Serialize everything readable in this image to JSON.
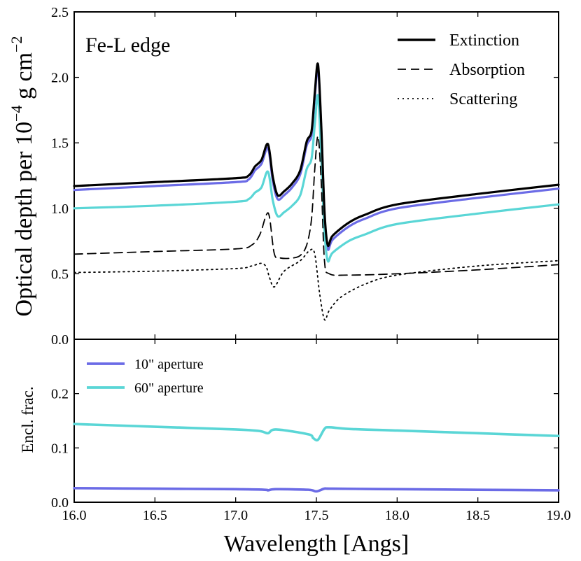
{
  "chart_data": [
    {
      "type": "line",
      "panel": "top",
      "annotation": "Fe-L edge",
      "xlabel": "Wavelength [Angs]",
      "ylabel": "Optical depth per 10^{-4} g cm^{-2}",
      "ylabel_parts": {
        "main": "Optical depth per 10",
        "exp": "−4",
        "tail": " g cm",
        "exp2": "−2"
      },
      "xlim": [
        16.0,
        19.0
      ],
      "ylim": [
        0.0,
        2.5
      ],
      "xticks": [
        "16.0",
        "16.5",
        "17.0",
        "17.5",
        "18.0",
        "18.5",
        "19.0"
      ],
      "yticks": [
        "0.0",
        "0.5",
        "1.0",
        "1.5",
        "2.0",
        "2.5"
      ],
      "legend_position": "upper-right",
      "series": [
        {
          "name": "10\" aperture",
          "color": "#6b6be6",
          "style": "solid",
          "in_legend": false,
          "x": [
            16.0,
            16.5,
            17.0,
            17.08,
            17.12,
            17.16,
            17.2,
            17.23,
            17.26,
            17.3,
            17.35,
            17.4,
            17.44,
            17.47,
            17.49,
            17.51,
            17.53,
            17.55,
            17.57,
            17.6,
            17.7,
            17.8,
            18.0,
            18.5,
            19.0
          ],
          "y": [
            1.14,
            1.17,
            1.2,
            1.22,
            1.29,
            1.34,
            1.46,
            1.21,
            1.07,
            1.1,
            1.16,
            1.26,
            1.48,
            1.56,
            1.85,
            2.07,
            1.6,
            0.95,
            0.69,
            0.76,
            0.86,
            0.92,
            1.0,
            1.08,
            1.15
          ]
        },
        {
          "name": "60\" aperture",
          "color": "#5ad6d6",
          "style": "solid",
          "in_legend": false,
          "x": [
            16.0,
            16.5,
            17.0,
            17.08,
            17.12,
            17.16,
            17.2,
            17.23,
            17.26,
            17.3,
            17.35,
            17.4,
            17.44,
            17.47,
            17.49,
            17.51,
            17.53,
            17.55,
            17.57,
            17.6,
            17.7,
            17.8,
            18.0,
            18.5,
            19.0
          ],
          "y": [
            1.0,
            1.02,
            1.05,
            1.07,
            1.12,
            1.16,
            1.28,
            1.06,
            0.94,
            0.97,
            1.02,
            1.1,
            1.3,
            1.38,
            1.64,
            1.86,
            1.4,
            0.83,
            0.6,
            0.66,
            0.75,
            0.8,
            0.88,
            0.96,
            1.03
          ]
        },
        {
          "name": "Extinction",
          "color": "#000000",
          "style": "solid",
          "in_legend": true,
          "x": [
            16.0,
            16.5,
            17.0,
            17.08,
            17.12,
            17.16,
            17.2,
            17.23,
            17.26,
            17.3,
            17.35,
            17.4,
            17.44,
            17.47,
            17.49,
            17.51,
            17.53,
            17.55,
            17.57,
            17.6,
            17.7,
            17.8,
            18.0,
            18.5,
            19.0
          ],
          "y": [
            1.17,
            1.2,
            1.23,
            1.25,
            1.32,
            1.37,
            1.49,
            1.24,
            1.1,
            1.13,
            1.19,
            1.29,
            1.51,
            1.59,
            1.88,
            2.1,
            1.63,
            0.98,
            0.72,
            0.79,
            0.89,
            0.95,
            1.03,
            1.11,
            1.18
          ]
        },
        {
          "name": "Absorption",
          "color": "#000000",
          "style": "dashed",
          "in_legend": true,
          "x": [
            16.0,
            16.5,
            17.0,
            17.1,
            17.15,
            17.19,
            17.21,
            17.24,
            17.28,
            17.35,
            17.4,
            17.44,
            17.47,
            17.49,
            17.51,
            17.53,
            17.55,
            17.58,
            17.7,
            18.0,
            18.5,
            19.0
          ],
          "y": [
            0.65,
            0.67,
            0.69,
            0.72,
            0.8,
            0.95,
            0.93,
            0.65,
            0.62,
            0.62,
            0.64,
            0.72,
            0.92,
            1.3,
            1.55,
            1.2,
            0.6,
            0.5,
            0.49,
            0.5,
            0.53,
            0.57
          ]
        },
        {
          "name": "Scattering",
          "color": "#000000",
          "style": "dotted",
          "in_legend": true,
          "x": [
            16.0,
            16.5,
            17.0,
            17.1,
            17.16,
            17.19,
            17.21,
            17.24,
            17.3,
            17.4,
            17.46,
            17.49,
            17.52,
            17.55,
            17.58,
            17.65,
            17.8,
            18.0,
            18.5,
            19.0
          ],
          "y": [
            0.51,
            0.52,
            0.54,
            0.56,
            0.58,
            0.55,
            0.47,
            0.4,
            0.52,
            0.6,
            0.68,
            0.65,
            0.35,
            0.15,
            0.22,
            0.32,
            0.42,
            0.49,
            0.56,
            0.6
          ]
        }
      ]
    },
    {
      "type": "line",
      "panel": "bottom",
      "xlabel": "Wavelength [Angs]",
      "ylabel": "Encl. frac.",
      "xlim": [
        16.0,
        19.0
      ],
      "ylim": [
        0.0,
        0.3
      ],
      "xticks": [
        "16.0",
        "16.5",
        "17.0",
        "17.5",
        "18.0",
        "18.5",
        "19.0"
      ],
      "yticks": [
        "0.0",
        "0.1",
        "0.2"
      ],
      "legend_position": "upper-left",
      "series": [
        {
          "name": "10\" aperture",
          "color": "#6b6be6",
          "style": "solid",
          "x": [
            16.0,
            16.5,
            17.0,
            17.18,
            17.2,
            17.25,
            17.45,
            17.5,
            17.55,
            17.6,
            18.0,
            18.5,
            19.0
          ],
          "y": [
            0.026,
            0.025,
            0.024,
            0.023,
            0.022,
            0.024,
            0.023,
            0.02,
            0.025,
            0.025,
            0.024,
            0.023,
            0.022
          ]
        },
        {
          "name": "60\" aperture",
          "color": "#5ad6d6",
          "style": "solid",
          "x": [
            16.0,
            16.5,
            17.0,
            17.15,
            17.2,
            17.25,
            17.45,
            17.48,
            17.51,
            17.55,
            17.58,
            17.7,
            18.0,
            18.5,
            19.0
          ],
          "y": [
            0.144,
            0.139,
            0.134,
            0.131,
            0.127,
            0.134,
            0.125,
            0.118,
            0.115,
            0.135,
            0.138,
            0.135,
            0.132,
            0.127,
            0.122
          ]
        }
      ]
    }
  ]
}
